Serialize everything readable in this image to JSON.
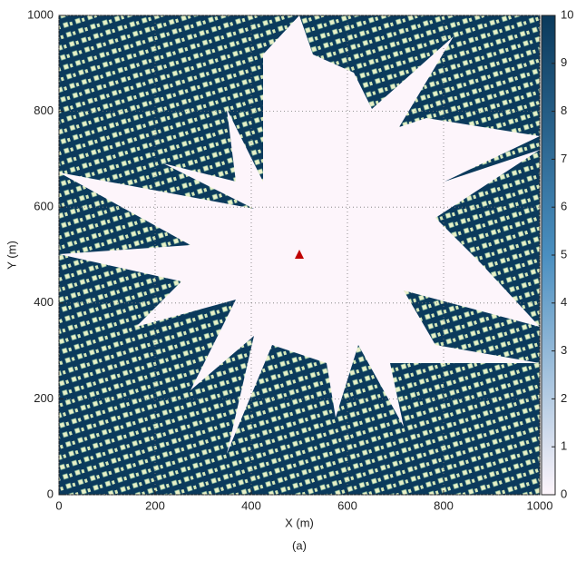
{
  "chart_data": {
    "type": "heatmap",
    "xlabel": "X (m)",
    "ylabel": "Y (m)",
    "caption": "(a)",
    "xlim": [
      0,
      1000
    ],
    "ylim": [
      0,
      1000
    ],
    "xticks": [
      0,
      200,
      400,
      600,
      800,
      1000
    ],
    "yticks": [
      0,
      200,
      400,
      600,
      800,
      1000
    ],
    "grid": true,
    "marker": {
      "x": 500,
      "y": 500,
      "color": "#c00000"
    },
    "colorbar": {
      "lim": [
        0,
        10
      ],
      "ticks": [
        0,
        1,
        2,
        3,
        4,
        5,
        6,
        7,
        8,
        9,
        10
      ],
      "colors": [
        "#fdf5fb",
        "#4a8fc0",
        "#0b3a5c"
      ]
    }
  }
}
